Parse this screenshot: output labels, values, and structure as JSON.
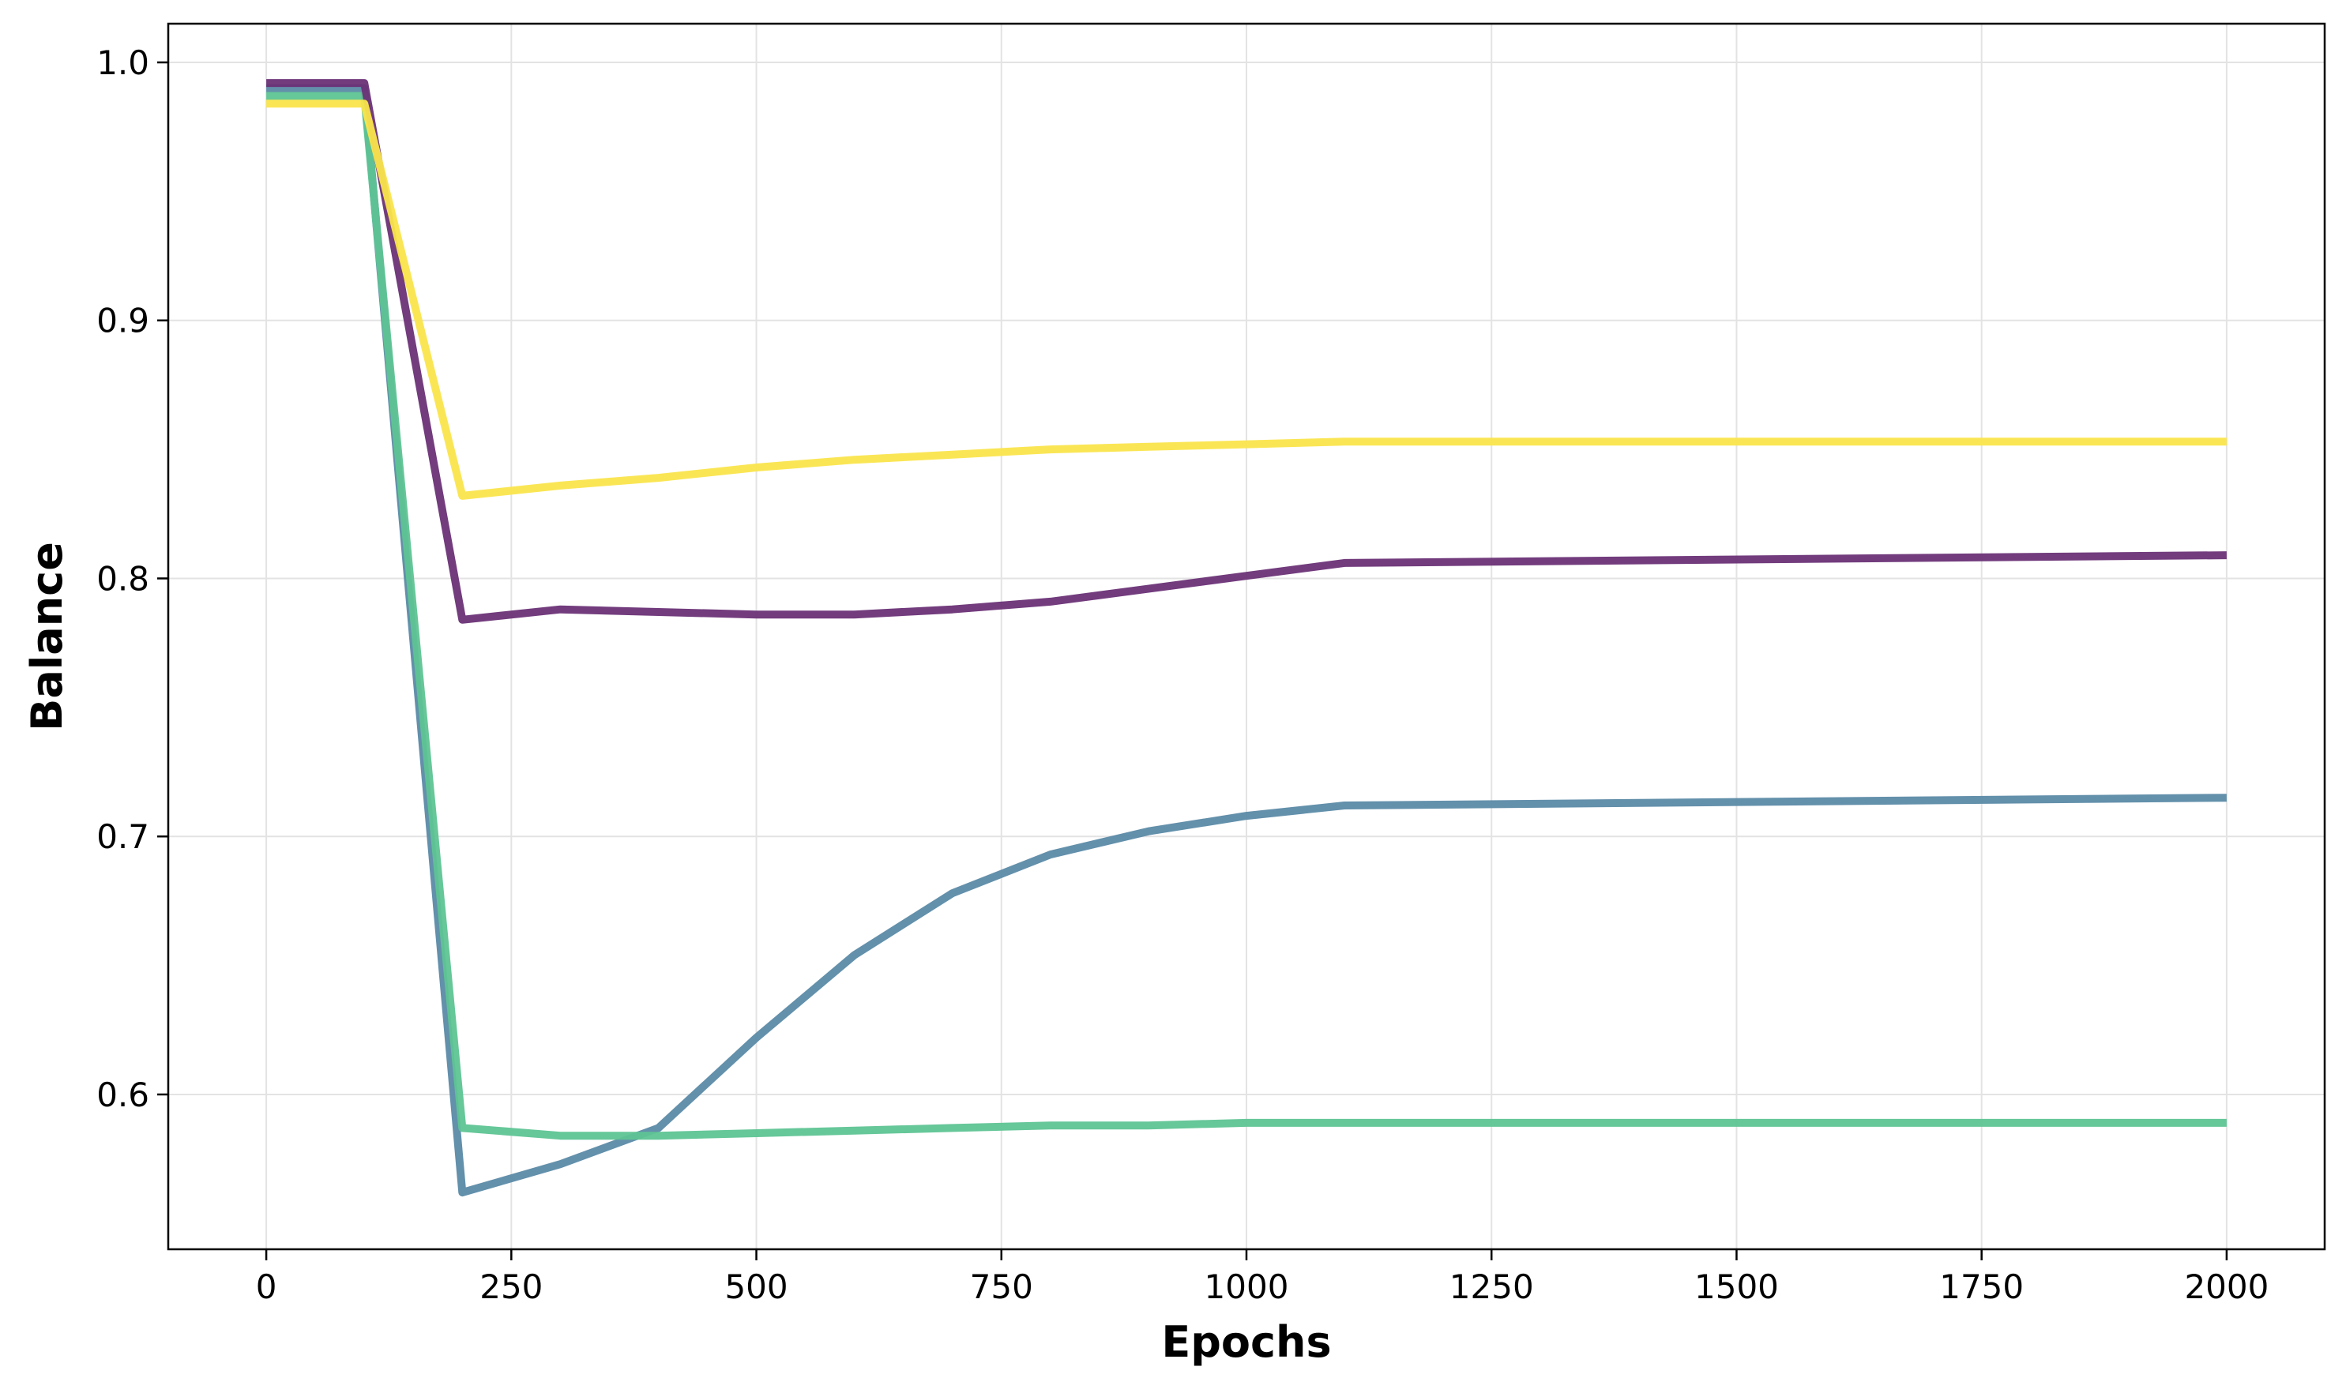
{
  "chart_data": {
    "type": "line",
    "title": "",
    "xlabel": "Epochs",
    "ylabel": "Balance",
    "xlim": [
      -100,
      2100
    ],
    "ylim": [
      0.54,
      1.015
    ],
    "xticks": [
      0,
      250,
      500,
      750,
      1000,
      1250,
      1500,
      1750,
      2000
    ],
    "xtick_labels": [
      "0",
      "250",
      "500",
      "750",
      "1000",
      "1250",
      "1500",
      "1750",
      "2000"
    ],
    "yticks": [
      0.6,
      0.7,
      0.8,
      0.9,
      1.0
    ],
    "ytick_labels": [
      "0.6",
      "0.7",
      "0.8",
      "0.9",
      "1.0"
    ],
    "grid": true,
    "legend": "none",
    "x": [
      0,
      100,
      200,
      300,
      400,
      500,
      600,
      700,
      800,
      900,
      1000,
      1100,
      2000
    ],
    "series": [
      {
        "color": "#5b8aa6",
        "values": [
          0.99,
          0.99,
          0.562,
          0.573,
          0.587,
          0.622,
          0.654,
          0.678,
          0.693,
          0.702,
          0.708,
          0.712,
          0.715
        ]
      },
      {
        "color": "#5ec494",
        "values": [
          0.987,
          0.987,
          0.587,
          0.584,
          0.584,
          0.585,
          0.586,
          0.587,
          0.588,
          0.588,
          0.589,
          0.589,
          0.589
        ]
      },
      {
        "color": "#6a3176",
        "values": [
          0.992,
          0.992,
          0.784,
          0.788,
          0.787,
          0.786,
          0.786,
          0.788,
          0.791,
          0.796,
          0.801,
          0.806,
          0.809
        ]
      },
      {
        "color": "#fae54c",
        "values": [
          0.984,
          0.984,
          0.832,
          0.836,
          0.839,
          0.843,
          0.846,
          0.848,
          0.85,
          0.851,
          0.852,
          0.853,
          0.853
        ]
      }
    ]
  }
}
